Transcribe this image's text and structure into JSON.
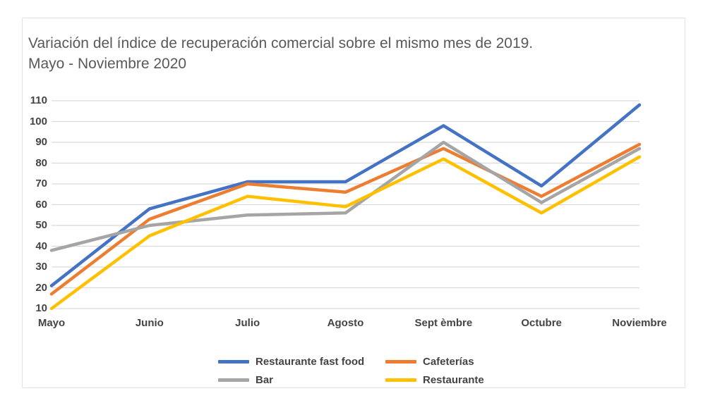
{
  "chart_data": {
    "type": "line",
    "title": "Variación del índice de recuperación comercial sobre el mismo mes de 2019. Mayo - Noviembre 2020",
    "title_lines": [
      "Variación del índice de recuperación comercial sobre el mismo mes de 2019.",
      "Mayo - Noviembre 2020"
    ],
    "categories": [
      "Mayo",
      "Junio",
      "Julio",
      "Agosto",
      "Sept èmbre",
      "Octubre",
      "Noviembre"
    ],
    "series": [
      {
        "name": "Restaurante fast food",
        "color": "#4472C4",
        "values": [
          21,
          58,
          71,
          71,
          98,
          69,
          108
        ]
      },
      {
        "name": "Cafeterías",
        "color": "#ED7D31",
        "values": [
          17,
          53,
          70,
          66,
          87,
          64,
          89
        ]
      },
      {
        "name": "Bar",
        "color": "#A5A5A5",
        "values": [
          38,
          50,
          55,
          56,
          90,
          61,
          87
        ]
      },
      {
        "name": "Restaurante",
        "color": "#FFC000",
        "values": [
          10,
          45,
          64,
          59,
          82,
          56,
          83
        ]
      }
    ],
    "ylim": [
      10,
      110
    ],
    "yticks": [
      110,
      100,
      90,
      80,
      70,
      60,
      50,
      40,
      30,
      20,
      10
    ],
    "grid": true,
    "gridline_color": "#D9D9D9",
    "legend_position": "bottom",
    "legend_rows": [
      [
        "Restaurante fast food",
        "Cafeterías"
      ],
      [
        "Bar",
        "Restaurante"
      ]
    ],
    "colors": {
      "title_text": "#595959",
      "axis_text": "#444444",
      "frame_border": "#E2E2E2"
    }
  }
}
